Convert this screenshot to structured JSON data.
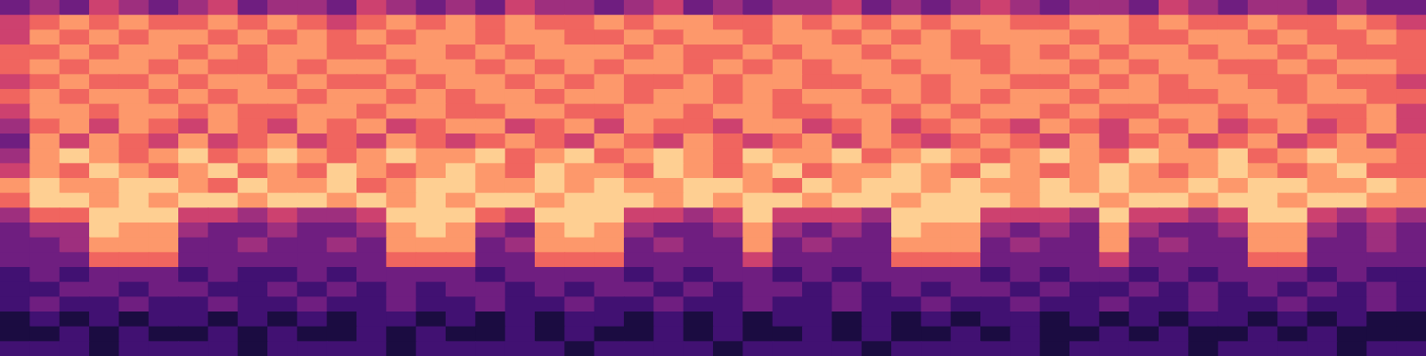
{
  "chart_data": {
    "type": "heatmap",
    "tick_labels": false,
    "cells": [
      [
        3,
        4,
        3,
        5,
        4,
        3,
        4,
        5,
        3,
        4,
        4,
        3,
        5,
        4,
        3,
        4,
        3,
        5,
        4,
        4,
        3,
        4,
        5,
        3,
        4,
        3,
        4,
        4,
        5,
        3,
        4,
        3,
        4,
        5,
        4,
        3,
        4,
        4,
        3,
        5,
        4,
        3,
        4,
        4,
        3,
        4,
        3,
        3
      ],
      [
        5,
        6,
        7,
        6,
        7,
        6,
        6,
        7,
        6,
        7,
        6,
        5,
        6,
        7,
        6,
        7,
        6,
        7,
        6,
        6,
        7,
        6,
        7,
        7,
        6,
        6,
        7,
        6,
        7,
        6,
        7,
        6,
        7,
        7,
        6,
        6,
        7,
        7,
        6,
        7,
        6,
        6,
        7,
        6,
        6,
        7,
        6,
        5
      ],
      [
        5,
        7,
        6,
        7,
        6,
        7,
        7,
        6,
        7,
        6,
        7,
        6,
        7,
        6,
        7,
        7,
        6,
        7,
        7,
        6,
        6,
        7,
        6,
        7,
        7,
        6,
        7,
        7,
        6,
        7,
        6,
        7,
        6,
        7,
        7,
        7,
        6,
        7,
        6,
        6,
        7,
        7,
        6,
        7,
        6,
        6,
        7,
        6
      ],
      [
        6,
        6,
        7,
        6,
        7,
        7,
        6,
        7,
        6,
        7,
        7,
        6,
        6,
        7,
        7,
        6,
        7,
        6,
        7,
        7,
        7,
        6,
        7,
        6,
        6,
        7,
        6,
        7,
        7,
        6,
        7,
        7,
        6,
        6,
        7,
        6,
        7,
        6,
        7,
        7,
        6,
        7,
        7,
        6,
        7,
        6,
        6,
        6
      ],
      [
        6,
        7,
        6,
        7,
        7,
        6,
        7,
        6,
        6,
        7,
        6,
        7,
        7,
        6,
        7,
        7,
        6,
        7,
        6,
        7,
        6,
        7,
        7,
        6,
        7,
        6,
        7,
        6,
        7,
        7,
        6,
        7,
        7,
        6,
        7,
        7,
        6,
        7,
        6,
        7,
        7,
        6,
        6,
        7,
        6,
        7,
        7,
        6
      ],
      [
        5,
        6,
        7,
        6,
        6,
        7,
        6,
        7,
        7,
        6,
        7,
        6,
        6,
        7,
        6,
        7,
        7,
        6,
        7,
        6,
        7,
        6,
        6,
        7,
        6,
        7,
        7,
        6,
        6,
        7,
        7,
        6,
        7,
        7,
        6,
        6,
        7,
        6,
        7,
        6,
        7,
        7,
        6,
        6,
        7,
        6,
        6,
        5
      ],
      [
        6,
        7,
        6,
        7,
        7,
        6,
        7,
        6,
        7,
        7,
        6,
        7,
        7,
        6,
        7,
        6,
        7,
        7,
        6,
        7,
        7,
        6,
        7,
        7,
        6,
        7,
        6,
        7,
        7,
        6,
        7,
        6,
        7,
        6,
        7,
        7,
        6,
        7,
        7,
        6,
        6,
        7,
        7,
        6,
        7,
        7,
        6,
        6
      ],
      [
        5,
        7,
        7,
        6,
        7,
        7,
        6,
        7,
        6,
        6,
        7,
        7,
        6,
        7,
        7,
        6,
        6,
        7,
        7,
        6,
        6,
        7,
        7,
        6,
        7,
        7,
        6,
        6,
        7,
        7,
        6,
        7,
        6,
        7,
        7,
        6,
        7,
        6,
        6,
        7,
        7,
        6,
        7,
        7,
        6,
        6,
        7,
        5
      ],
      [
        4,
        6,
        7,
        5,
        7,
        6,
        5,
        7,
        6,
        5,
        7,
        6,
        7,
        5,
        6,
        7,
        7,
        5,
        6,
        7,
        5,
        7,
        6,
        6,
        5,
        7,
        7,
        5,
        6,
        7,
        5,
        6,
        7,
        6,
        5,
        7,
        6,
        5,
        7,
        6,
        7,
        5,
        6,
        7,
        5,
        6,
        7,
        5
      ],
      [
        3,
        7,
        5,
        7,
        6,
        5,
        7,
        5,
        6,
        7,
        5,
        6,
        5,
        7,
        6,
        5,
        6,
        7,
        6,
        5,
        7,
        6,
        5,
        7,
        6,
        5,
        6,
        7,
        5,
        7,
        6,
        5,
        6,
        7,
        6,
        5,
        7,
        5,
        6,
        7,
        5,
        6,
        7,
        5,
        6,
        7,
        5,
        6
      ],
      [
        4,
        7,
        8,
        7,
        6,
        7,
        8,
        6,
        7,
        8,
        7,
        6,
        7,
        8,
        7,
        7,
        8,
        6,
        7,
        8,
        6,
        7,
        8,
        7,
        6,
        8,
        7,
        7,
        8,
        6,
        7,
        8,
        7,
        6,
        7,
        8,
        7,
        6,
        8,
        7,
        7,
        8,
        6,
        7,
        8,
        7,
        7,
        6
      ],
      [
        5,
        7,
        6,
        8,
        7,
        6,
        7,
        8,
        6,
        7,
        6,
        8,
        7,
        6,
        7,
        8,
        7,
        6,
        8,
        7,
        7,
        6,
        8,
        7,
        6,
        7,
        8,
        6,
        7,
        7,
        8,
        7,
        6,
        8,
        7,
        6,
        7,
        8,
        7,
        6,
        7,
        8,
        7,
        6,
        7,
        8,
        6,
        6
      ],
      [
        7,
        8,
        7,
        7,
        8,
        8,
        7,
        6,
        8,
        7,
        7,
        8,
        6,
        7,
        8,
        8,
        7,
        7,
        8,
        7,
        8,
        7,
        7,
        8,
        8,
        7,
        6,
        8,
        7,
        8,
        8,
        7,
        8,
        7,
        7,
        8,
        7,
        8,
        7,
        7,
        8,
        7,
        8,
        8,
        7,
        7,
        8,
        7
      ],
      [
        6,
        8,
        8,
        7,
        8,
        7,
        8,
        8,
        7,
        8,
        8,
        7,
        8,
        7,
        8,
        7,
        8,
        8,
        7,
        8,
        8,
        8,
        7,
        8,
        7,
        8,
        8,
        7,
        8,
        8,
        7,
        8,
        8,
        8,
        7,
        8,
        8,
        7,
        8,
        8,
        7,
        8,
        8,
        7,
        8,
        8,
        7,
        7
      ],
      [
        4,
        6,
        6,
        8,
        8,
        8,
        5,
        5,
        4,
        5,
        4,
        4,
        5,
        8,
        8,
        8,
        6,
        5,
        8,
        8,
        8,
        5,
        5,
        4,
        5,
        8,
        5,
        5,
        5,
        4,
        8,
        8,
        8,
        5,
        5,
        5,
        4,
        8,
        5,
        5,
        4,
        5,
        8,
        8,
        5,
        4,
        5,
        4
      ],
      [
        3,
        4,
        4,
        8,
        7,
        7,
        4,
        3,
        3,
        4,
        3,
        3,
        4,
        7,
        8,
        7,
        4,
        3,
        7,
        8,
        7,
        4,
        3,
        3,
        4,
        7,
        4,
        3,
        4,
        3,
        8,
        7,
        7,
        4,
        3,
        4,
        3,
        7,
        4,
        3,
        3,
        4,
        7,
        7,
        4,
        3,
        4,
        3
      ],
      [
        3,
        3,
        4,
        7,
        7,
        7,
        3,
        3,
        4,
        3,
        3,
        4,
        3,
        7,
        7,
        7,
        3,
        4,
        7,
        7,
        7,
        3,
        4,
        3,
        3,
        7,
        3,
        4,
        3,
        3,
        7,
        7,
        7,
        3,
        4,
        3,
        3,
        7,
        3,
        4,
        3,
        3,
        7,
        7,
        3,
        3,
        4,
        3
      ],
      [
        3,
        3,
        3,
        6,
        6,
        6,
        3,
        3,
        3,
        3,
        3,
        3,
        3,
        6,
        6,
        6,
        3,
        3,
        6,
        6,
        6,
        3,
        3,
        3,
        3,
        5,
        3,
        3,
        3,
        3,
        6,
        6,
        6,
        3,
        3,
        3,
        3,
        5,
        3,
        3,
        3,
        3,
        6,
        6,
        3,
        3,
        3,
        3
      ],
      [
        2,
        3,
        2,
        3,
        3,
        3,
        2,
        3,
        2,
        2,
        3,
        2,
        3,
        3,
        3,
        3,
        2,
        3,
        3,
        3,
        3,
        2,
        3,
        2,
        3,
        3,
        2,
        3,
        2,
        3,
        3,
        3,
        3,
        2,
        3,
        2,
        3,
        3,
        2,
        3,
        2,
        3,
        3,
        3,
        2,
        3,
        2,
        2
      ],
      [
        2,
        2,
        3,
        3,
        2,
        3,
        3,
        2,
        2,
        3,
        2,
        3,
        2,
        3,
        2,
        3,
        3,
        2,
        3,
        2,
        3,
        3,
        2,
        3,
        2,
        3,
        3,
        2,
        3,
        2,
        3,
        2,
        3,
        3,
        2,
        3,
        2,
        2,
        3,
        2,
        3,
        2,
        3,
        2,
        3,
        2,
        3,
        2
      ],
      [
        2,
        3,
        2,
        2,
        3,
        2,
        2,
        3,
        2,
        2,
        3,
        2,
        2,
        3,
        2,
        2,
        3,
        2,
        2,
        3,
        2,
        2,
        3,
        2,
        2,
        3,
        2,
        2,
        3,
        2,
        2,
        3,
        2,
        2,
        3,
        2,
        2,
        3,
        2,
        2,
        3,
        2,
        2,
        3,
        2,
        2,
        3,
        2
      ],
      [
        1,
        2,
        1,
        2,
        1,
        2,
        2,
        1,
        2,
        1,
        2,
        1,
        2,
        2,
        1,
        2,
        1,
        2,
        1,
        2,
        2,
        1,
        2,
        1,
        2,
        1,
        2,
        2,
        1,
        2,
        1,
        2,
        1,
        2,
        2,
        1,
        2,
        1,
        2,
        1,
        2,
        2,
        1,
        2,
        1,
        2,
        1,
        1
      ],
      [
        1,
        1,
        2,
        1,
        2,
        1,
        1,
        2,
        1,
        2,
        1,
        1,
        2,
        1,
        2,
        1,
        1,
        2,
        1,
        2,
        1,
        1,
        2,
        1,
        2,
        1,
        1,
        2,
        1,
        2,
        1,
        1,
        2,
        1,
        2,
        1,
        1,
        2,
        1,
        2,
        1,
        1,
        2,
        1,
        2,
        1,
        1,
        1
      ],
      [
        2,
        2,
        2,
        1,
        2,
        2,
        2,
        2,
        1,
        2,
        2,
        2,
        2,
        1,
        2,
        2,
        2,
        2,
        2,
        1,
        2,
        2,
        2,
        2,
        1,
        2,
        2,
        2,
        2,
        1,
        2,
        2,
        2,
        2,
        2,
        1,
        2,
        2,
        2,
        2,
        1,
        2,
        2,
        2,
        2,
        1,
        2,
        2
      ]
    ]
  }
}
